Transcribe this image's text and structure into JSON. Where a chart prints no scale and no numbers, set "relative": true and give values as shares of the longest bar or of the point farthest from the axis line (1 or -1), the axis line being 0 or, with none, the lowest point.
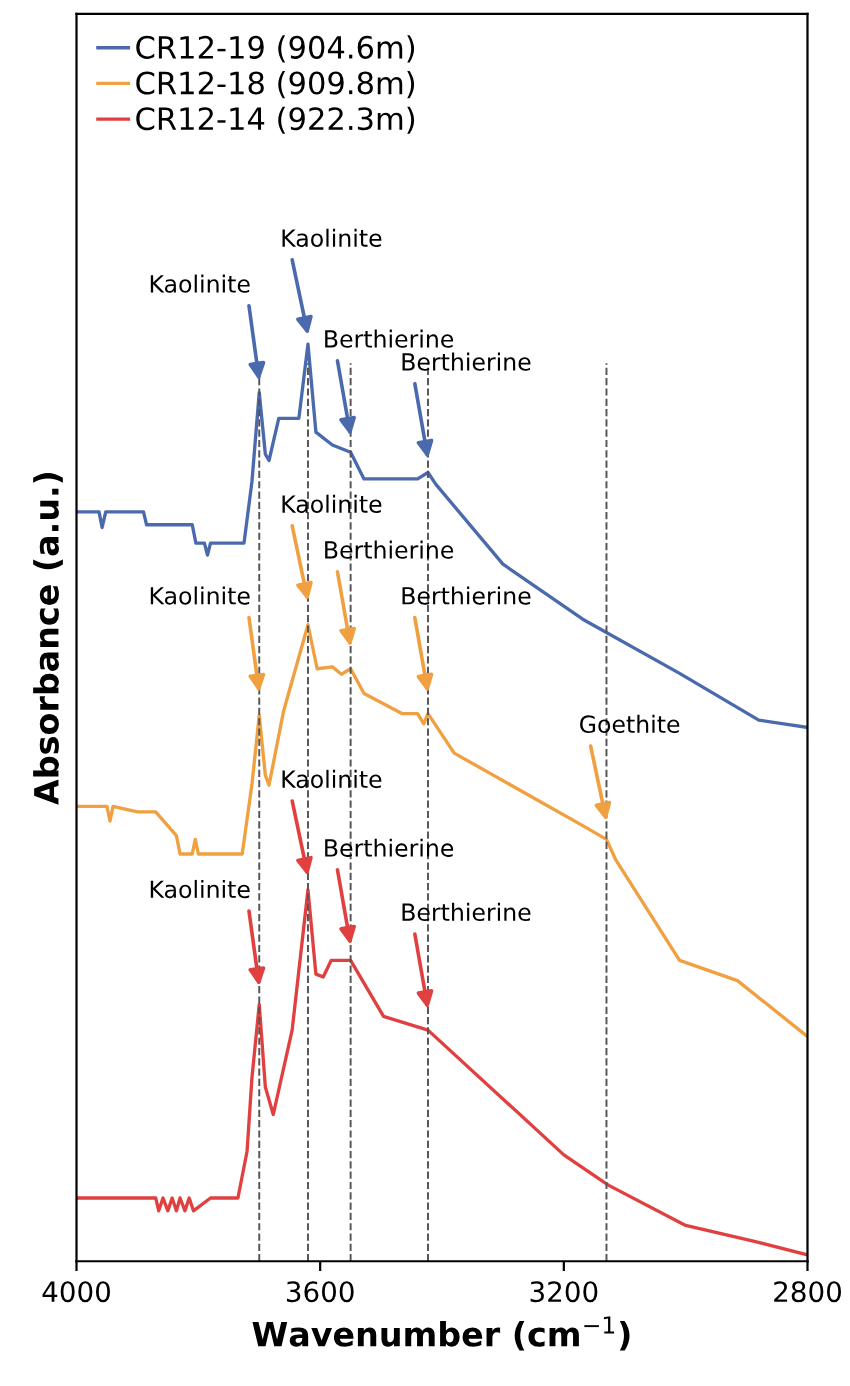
{
  "chart_data": {
    "type": "line",
    "xlabel": "Wavenumber (cm$^{−1}$)",
    "ylabel": "Absorbance (a.u.)",
    "relative": true,
    "xlim": [
      4000,
      2800
    ],
    "xticks": [
      4000,
      3600,
      3200,
      2800
    ],
    "grid": false,
    "legend": "top left",
    "marker": "none",
    "line_style": "solid",
    "series": [
      {
        "name": "CR12-19 (904.6m)",
        "color": "#4a6aad",
        "x": [
          4000,
          3963,
          3958,
          3952,
          3890,
          3885,
          3810,
          3804,
          3790,
          3785,
          3780,
          3740,
          3725,
          3712,
          3700,
          3690,
          3684,
          3668,
          3635,
          3620,
          3607,
          3580,
          3550,
          3528,
          3440,
          3423,
          3410,
          3300,
          3169,
          3010,
          2880,
          2800
        ],
        "values": [
          0.817,
          0.817,
          0.8,
          0.817,
          0.817,
          0.803,
          0.803,
          0.783,
          0.783,
          0.77,
          0.783,
          0.783,
          0.783,
          0.85,
          0.947,
          0.88,
          0.873,
          0.919,
          0.919,
          1.0,
          0.904,
          0.89,
          0.882,
          0.853,
          0.853,
          0.86,
          0.847,
          0.76,
          0.7,
          0.641,
          0.59,
          0.582
        ]
      },
      {
        "name": "CR12-18 (909.8m)",
        "color": "#f0a040",
        "x": [
          4000,
          3950,
          3945,
          3940,
          3900,
          3870,
          3836,
          3830,
          3810,
          3805,
          3800,
          3760,
          3728,
          3712,
          3700,
          3690,
          3684,
          3660,
          3620,
          3605,
          3580,
          3565,
          3550,
          3528,
          3465,
          3440,
          3430,
          3423,
          3380,
          3169,
          3130,
          3115,
          3010,
          2915,
          2800
        ],
        "values": [
          0.496,
          0.496,
          0.48,
          0.496,
          0.49,
          0.49,
          0.464,
          0.444,
          0.444,
          0.46,
          0.444,
          0.444,
          0.444,
          0.52,
          0.595,
          0.53,
          0.519,
          0.6,
          0.694,
          0.646,
          0.648,
          0.64,
          0.646,
          0.619,
          0.597,
          0.597,
          0.586,
          0.597,
          0.554,
          0.475,
          0.46,
          0.438,
          0.328,
          0.306,
          0.245
        ]
      },
      {
        "name": "CR12-14 (922.3m)",
        "color": "#e04040",
        "x": [
          4000,
          3870,
          3865,
          3858,
          3850,
          3843,
          3836,
          3830,
          3822,
          3815,
          3808,
          3780,
          3735,
          3720,
          3712,
          3700,
          3690,
          3677,
          3646,
          3620,
          3607,
          3595,
          3582,
          3550,
          3496,
          3423,
          3200,
          3127,
          3000,
          2889,
          2800
        ],
        "values": [
          0.069,
          0.069,
          0.055,
          0.069,
          0.055,
          0.069,
          0.055,
          0.069,
          0.055,
          0.069,
          0.055,
          0.069,
          0.069,
          0.12,
          0.2,
          0.28,
          0.19,
          0.16,
          0.252,
          0.405,
          0.313,
          0.31,
          0.328,
          0.328,
          0.267,
          0.252,
          0.116,
          0.083,
          0.039,
          0.022,
          0.007
        ]
      }
    ],
    "ref_lines": [
      {
        "axis": "x",
        "value": 3700,
        "label": null,
        "color": "#555555",
        "line_style": "dashed"
      },
      {
        "axis": "x",
        "value": 3620,
        "label": null,
        "color": "#555555",
        "line_style": "dashed"
      },
      {
        "axis": "x",
        "value": 3550,
        "label": null,
        "color": "#555555",
        "line_style": "dashed"
      },
      {
        "axis": "x",
        "value": 3423,
        "label": null,
        "color": "#555555",
        "line_style": "dashed"
      },
      {
        "axis": "x",
        "value": 3130,
        "label": null,
        "color": "#555555",
        "line_style": "dashed"
      }
    ],
    "annotations": [
      {
        "text": "Kaolinite",
        "x": 3700,
        "y": 0.96
      },
      {
        "text": "Kaolinite",
        "x": 3620,
        "y": 1.01
      },
      {
        "text": "Berthierine",
        "x": 3550,
        "y": 0.9
      },
      {
        "text": "Berthierine",
        "x": 3423,
        "y": 0.875
      },
      {
        "text": "Kaolinite",
        "x": 3700,
        "y": 0.62
      },
      {
        "text": "Kaolinite",
        "x": 3620,
        "y": 0.72
      },
      {
        "text": "Berthierine",
        "x": 3550,
        "y": 0.67
      },
      {
        "text": "Berthierine",
        "x": 3423,
        "y": 0.62
      },
      {
        "text": "Goethite",
        "x": 3130,
        "y": 0.48
      },
      {
        "text": "Kaolinite",
        "x": 3700,
        "y": 0.3
      },
      {
        "text": "Kaolinite",
        "x": 3620,
        "y": 0.42
      },
      {
        "text": "Berthierine",
        "x": 3550,
        "y": 0.345
      },
      {
        "text": "Berthierine",
        "x": 3423,
        "y": 0.275
      }
    ]
  }
}
